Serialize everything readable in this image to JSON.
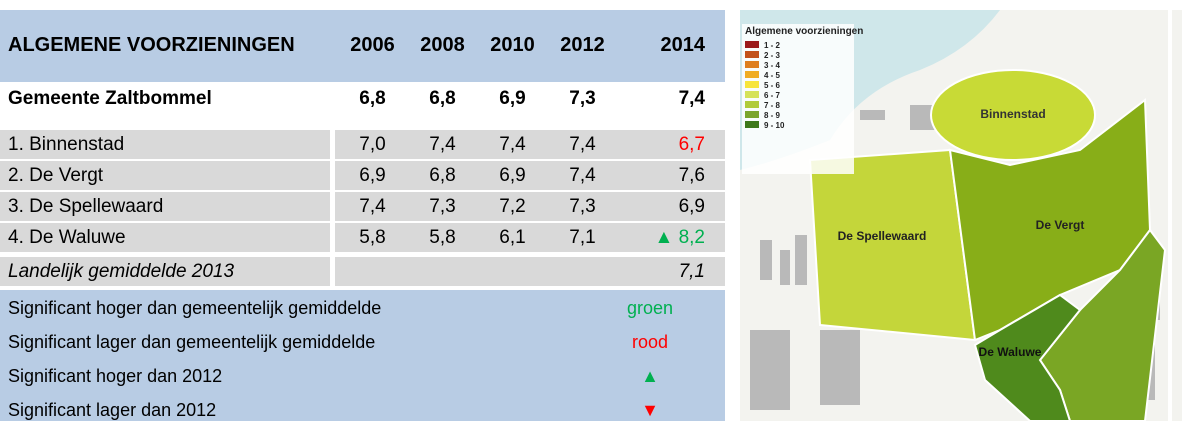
{
  "table": {
    "header": [
      "ALGEMENE VOORZIENINGEN",
      "2006",
      "2008",
      "2010",
      "2012",
      "2014"
    ],
    "rows": [
      [
        "Gemeente Zaltbommel",
        "6,8",
        "6,8",
        "6,9",
        "7,3",
        "7,4"
      ],
      [
        "1. Binnenstad",
        "7,0",
        "7,4",
        "7,4",
        "7,4",
        "6,7"
      ],
      [
        "2. De Vergt",
        "6,9",
        "6,8",
        "6,9",
        "7,4",
        "7,6"
      ],
      [
        "3. De Spellewaard",
        "7,4",
        "7,3",
        "7,2",
        "7,3",
        "6,9"
      ],
      [
        "4. De Waluwe",
        "5,8",
        "5,8",
        "6,1",
        "7,1",
        "▲ 8,2"
      ],
      [
        "Landelijk gemiddelde 2013",
        "",
        "",
        "",
        "",
        "7,1"
      ]
    ]
  },
  "legend": [
    {
      "text": "Significant hoger dan gemeentelijk gemiddelde",
      "marker": "groen"
    },
    {
      "text": "Significant lager dan gemeentelijk gemiddelde",
      "marker": "rood"
    },
    {
      "text": "Significant hoger dan 2012",
      "marker": "▲"
    },
    {
      "text": "Significant lager dan 2012",
      "marker": "▼"
    }
  ],
  "map": {
    "legend_title": "Algemene voorzieningen",
    "legend_items": [
      "1 - 2",
      "2 - 3",
      "3 - 4",
      "4 - 5",
      "5 - 6",
      "6 - 7",
      "7 - 8",
      "8 - 9",
      "9 - 10"
    ],
    "labels": [
      "Binnenstad",
      "De Vergt",
      "De Spellewaard",
      "De Waluwe"
    ]
  }
}
